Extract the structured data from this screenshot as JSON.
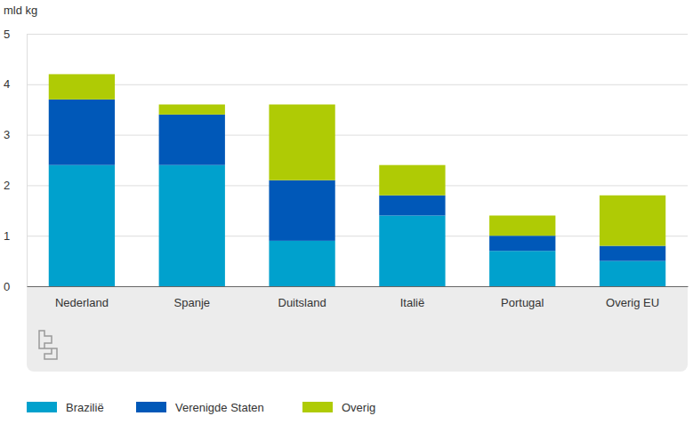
{
  "chart_data": {
    "type": "bar",
    "stacked": true,
    "y_label": "mld kg",
    "categories": [
      "Nederland",
      "Spanje",
      "Duitsland",
      "Italië",
      "Portugal",
      "Overig EU"
    ],
    "series": [
      {
        "name": "Brazilië",
        "color": "#00a1cd",
        "values": [
          2.4,
          2.4,
          0.9,
          1.4,
          0.7,
          0.5
        ]
      },
      {
        "name": "Verenigde Staten",
        "color": "#0058b8",
        "values": [
          1.3,
          1.0,
          1.2,
          0.4,
          0.3,
          0.3
        ]
      },
      {
        "name": "Overig",
        "color": "#afcb05",
        "values": [
          0.5,
          0.2,
          1.5,
          0.6,
          0.4,
          1.0
        ]
      }
    ],
    "ylim": [
      0,
      5
    ],
    "yticks": [
      0,
      1,
      2,
      3,
      4,
      5
    ],
    "grid": true,
    "legend": "bottom"
  }
}
